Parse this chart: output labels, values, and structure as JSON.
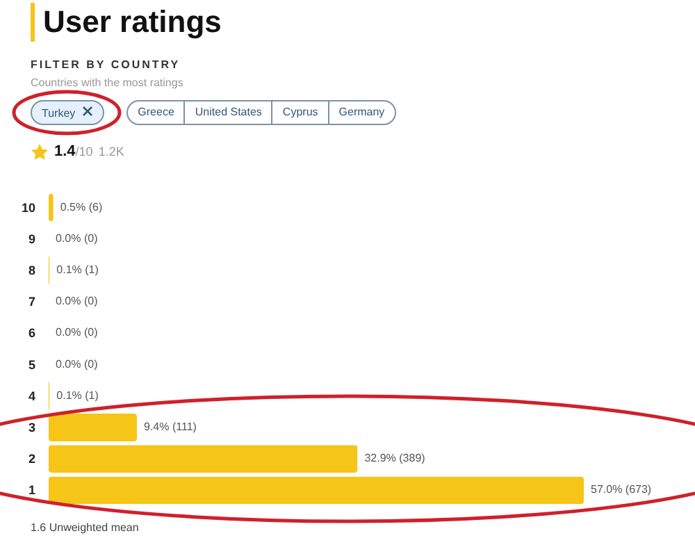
{
  "chart_data": {
    "type": "bar",
    "orientation": "horizontal",
    "title": "User ratings",
    "subtitle": "FILTER BY COUNTRY",
    "categories": [
      "10",
      "9",
      "8",
      "7",
      "6",
      "5",
      "4",
      "3",
      "2",
      "1"
    ],
    "values": [
      0.5,
      0.0,
      0.1,
      0.0,
      0.0,
      0.0,
      0.1,
      9.4,
      32.9,
      57.0
    ],
    "value_labels": [
      "0.5% (6)",
      "0.0% (0)",
      "0.1% (1)",
      "0.0% (0)",
      "0.0% (0)",
      "0.0% (0)",
      "0.1% (1)",
      "9.4% (111)",
      "32.9% (389)",
      "57.0% (673)"
    ],
    "color": "#f5c518",
    "annotations": [
      "Countries with the most ratings",
      "Turkey",
      "Greece",
      "United States",
      "Cyprus",
      "Germany",
      "1.4",
      "/10",
      "1.2K",
      "1.6 Unweighted mean"
    ],
    "grid": false
  }
}
